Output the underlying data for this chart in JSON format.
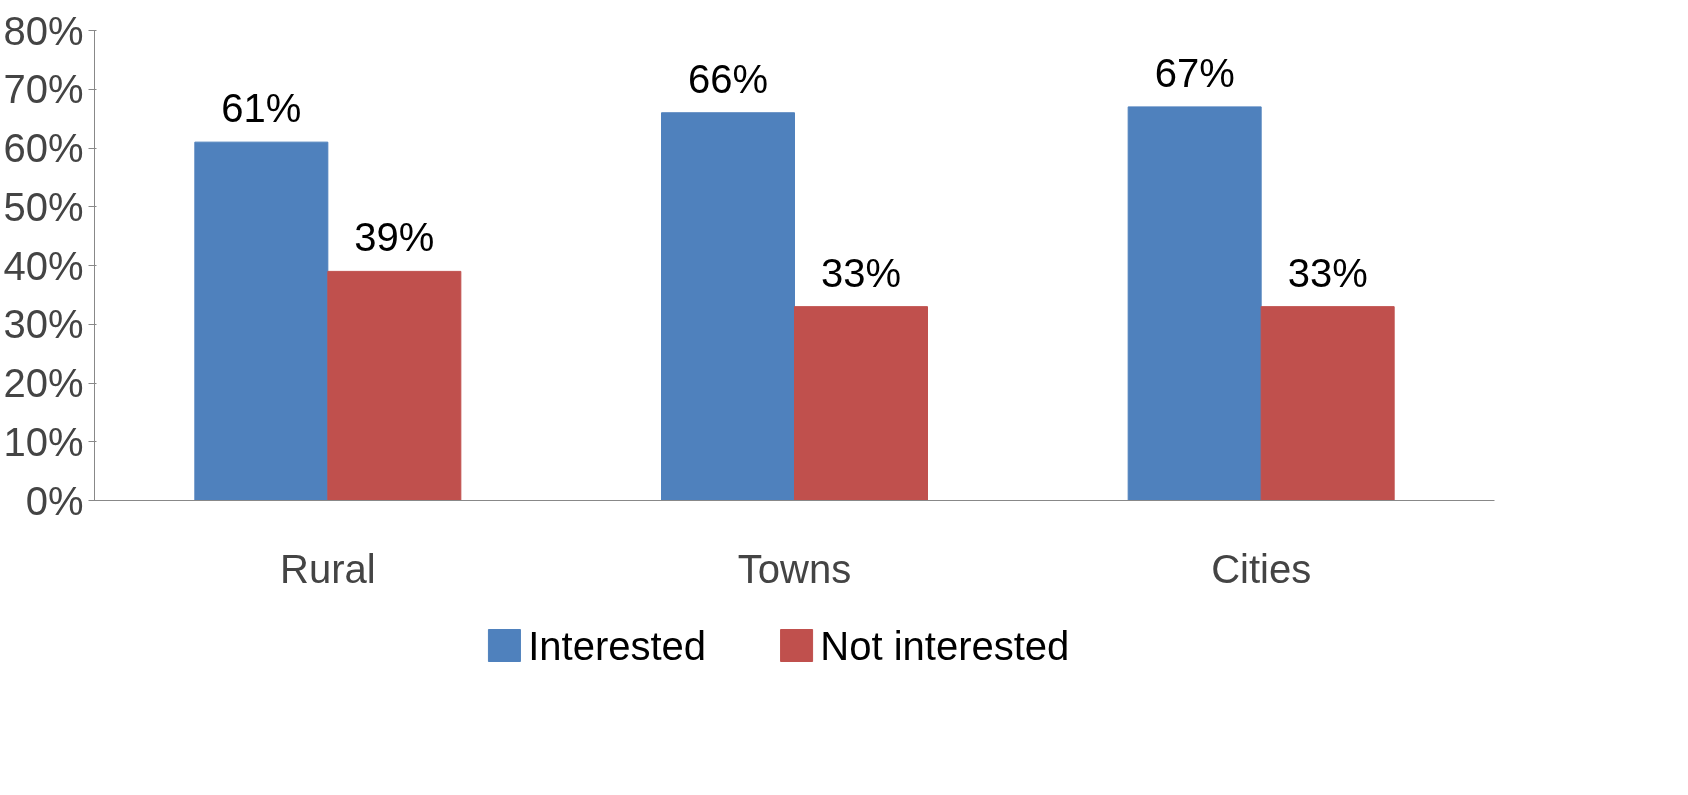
{
  "chart_data": {
    "type": "bar",
    "categories": [
      "Rural",
      "Towns",
      "Cities"
    ],
    "series": [
      {
        "name": "Interested",
        "color": "#4f81bd",
        "values": [
          61,
          66,
          67
        ],
        "value_labels": [
          "61%",
          "66%",
          "67%"
        ]
      },
      {
        "name": "Not interested",
        "color": "#c0504d",
        "values": [
          39,
          33,
          33
        ],
        "value_labels": [
          "39%",
          "33%",
          "33%"
        ]
      }
    ],
    "ylim": [
      0,
      80
    ],
    "yticks": [
      {
        "value": 0,
        "label": "0%"
      },
      {
        "value": 10,
        "label": "10%"
      },
      {
        "value": 20,
        "label": "20%"
      },
      {
        "value": 30,
        "label": "30%"
      },
      {
        "value": 40,
        "label": "40%"
      },
      {
        "value": 50,
        "label": "50%"
      },
      {
        "value": 60,
        "label": "60%"
      },
      {
        "value": 70,
        "label": "70%"
      },
      {
        "value": 80,
        "label": "80%"
      }
    ],
    "grid": false,
    "legend": "bottom"
  }
}
